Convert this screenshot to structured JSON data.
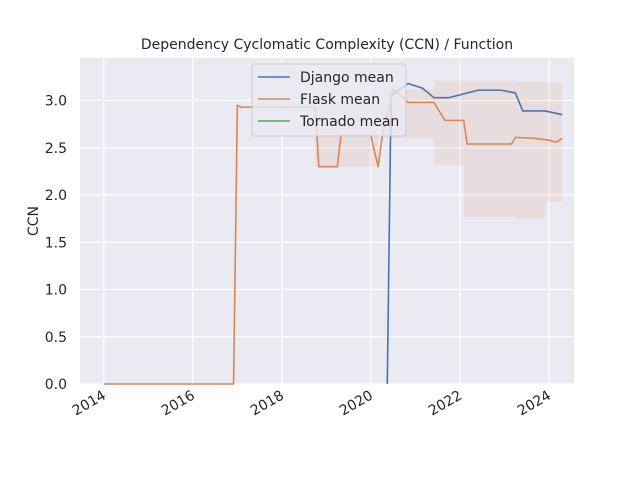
{
  "chart_data": {
    "type": "line",
    "title": "Dependency Cyclomatic Complexity (CCN) / Function",
    "ylabel": "CCN",
    "xlabel": "",
    "xlim": [
      "2013-06-20",
      "2024-07-25"
    ],
    "ylim": [
      0,
      3.45
    ],
    "x_ticks": [
      {
        "date": "2014-01-01",
        "label": "2014"
      },
      {
        "date": "2016-01-01",
        "label": "2016"
      },
      {
        "date": "2018-01-01",
        "label": "2018"
      },
      {
        "date": "2020-01-01",
        "label": "2020"
      },
      {
        "date": "2022-01-01",
        "label": "2022"
      },
      {
        "date": "2024-01-01",
        "label": "2024"
      }
    ],
    "y_ticks": [
      {
        "value": 0,
        "label": "0.0"
      },
      {
        "value": 0.5,
        "label": "0.5"
      },
      {
        "value": 1,
        "label": "1.0"
      },
      {
        "value": 1.5,
        "label": "1.5"
      },
      {
        "value": 2,
        "label": "2.0"
      },
      {
        "value": 2.5,
        "label": "2.5"
      },
      {
        "value": 3,
        "label": "3.0"
      }
    ],
    "grid": true,
    "legend_position": "top-center",
    "series": [
      {
        "name": "Django mean",
        "color": "#4c72b0",
        "x": [
          "2020-05-15",
          "2020-06-15",
          "2020-07-15",
          "2020-11-01",
          "2021-03-01",
          "2021-06-01",
          "2021-10-01",
          "2022-01-01",
          "2022-06-01",
          "2022-12-01",
          "2023-04-01",
          "2023-06-01",
          "2023-12-01",
          "2024-04-20"
        ],
        "y": [
          0,
          3.05,
          3.08,
          3.18,
          3.13,
          3.03,
          3.03,
          3.06,
          3.11,
          3.11,
          3.08,
          2.89,
          2.89,
          2.85
        ]
      },
      {
        "name": "Flask mean",
        "color": "#dd8452",
        "x": [
          "2014-01-01",
          "2016-12-01",
          "2017-01-01",
          "2017-02-01",
          "2018-10-01",
          "2018-11-01",
          "2019-04-01",
          "2019-05-01",
          "2020-01-01",
          "2020-03-01",
          "2020-04-01",
          "2020-07-01",
          "2020-11-01",
          "2021-06-01",
          "2021-09-01",
          "2022-02-01",
          "2022-03-01",
          "2023-03-01",
          "2023-04-01",
          "2023-09-01",
          "2024-01-01",
          "2024-03-01",
          "2024-04-20"
        ],
        "y": [
          0,
          0,
          2.95,
          2.93,
          2.93,
          2.3,
          2.3,
          2.63,
          2.63,
          2.3,
          2.6,
          3.12,
          2.98,
          2.98,
          2.79,
          2.79,
          2.54,
          2.54,
          2.61,
          2.6,
          2.58,
          2.56,
          2.6
        ]
      },
      {
        "name": "Tornado mean",
        "color": "#55a868",
        "x": [],
        "y": []
      }
    ]
  }
}
